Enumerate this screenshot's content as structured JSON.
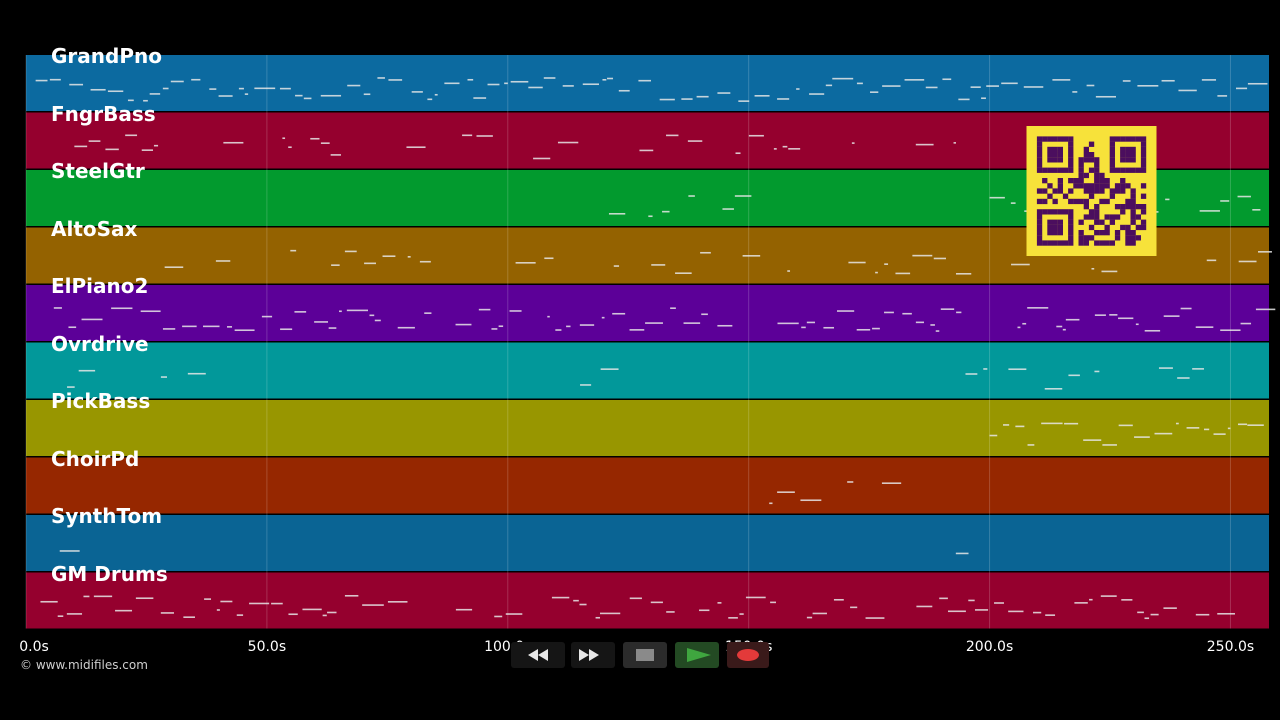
{
  "tracks": [
    {
      "name": "GrandPno",
      "color": "#0c6aa0"
    },
    {
      "name": "FngrBass",
      "color": "#95002e"
    },
    {
      "name": "SteelGtr",
      "color": "#029a2e"
    },
    {
      "name": "AltoSax",
      "color": "#946200"
    },
    {
      "name": "ElPiano2",
      "color": "#5c0098"
    },
    {
      "name": "Ovrdrive",
      "color": "#02989a"
    },
    {
      "name": "PickBass",
      "color": "#989600"
    },
    {
      "name": "ChoirPd",
      "color": "#962700"
    },
    {
      "name": "SynthTom",
      "color": "#0a6494"
    },
    {
      "name": "GM Drums",
      "color": "#95002e"
    }
  ],
  "timeline": {
    "ticks": [
      "0.0s",
      "50.0s",
      "100.0s",
      "150.0s",
      "200.0s",
      "250.0s"
    ],
    "max_seconds": 258
  },
  "copyright": "© www.midifiles.com",
  "transport": {
    "buttons": [
      "rewind",
      "fast-forward",
      "stop",
      "play",
      "record"
    ],
    "colors": {
      "play": "#3fa63f",
      "record": "#e33a3a",
      "stop": "#8a8a8a"
    }
  },
  "qr_code": {
    "fg": "#4b0e5e",
    "bg": "#f7e23a"
  }
}
